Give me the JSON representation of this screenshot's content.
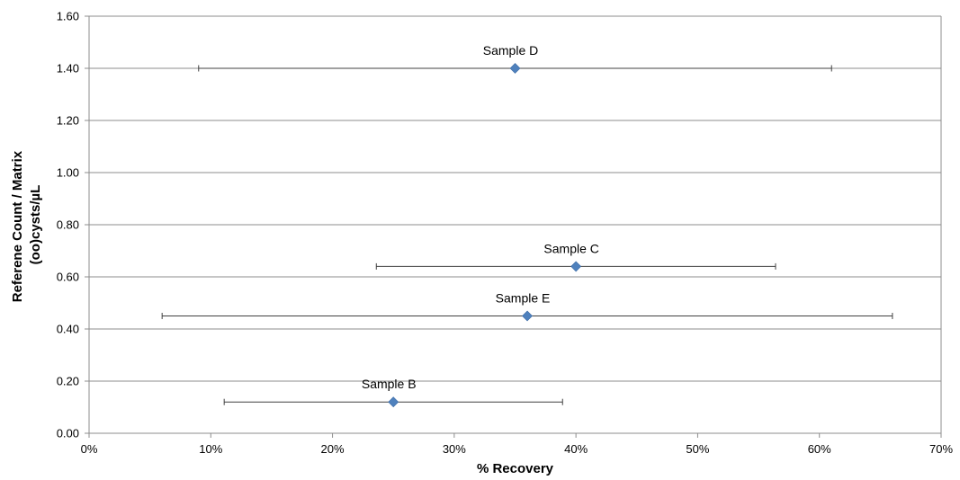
{
  "chart_data": {
    "type": "scatter",
    "title": "",
    "xlabel": "% Recovery",
    "ylabel_lines": [
      "Referene Count / Matrix",
      "(oo)cysts/µL"
    ],
    "xlim": [
      0,
      0.7
    ],
    "ylim": [
      0,
      1.6
    ],
    "x_ticks": [
      0,
      0.1,
      0.2,
      0.3,
      0.4,
      0.5,
      0.6,
      0.7
    ],
    "x_tick_labels": [
      "0%",
      "10%",
      "20%",
      "30%",
      "40%",
      "50%",
      "60%",
      "70%"
    ],
    "y_ticks": [
      0,
      0.2,
      0.4,
      0.6,
      0.8,
      1.0,
      1.2,
      1.4,
      1.6
    ],
    "y_tick_labels": [
      "0.00",
      "0.20",
      "0.40",
      "0.60",
      "0.80",
      "1.00",
      "1.20",
      "1.40",
      "1.60"
    ],
    "grid": true,
    "marker_color": "#4F81BD",
    "points": [
      {
        "label": "Sample D",
        "x": 0.35,
        "y": 1.4,
        "x_err_low": 0.09,
        "x_err_high": 0.61
      },
      {
        "label": "Sample C",
        "x": 0.4,
        "y": 0.64,
        "x_err_low": 0.236,
        "x_err_high": 0.564
      },
      {
        "label": "Sample E",
        "x": 0.36,
        "y": 0.45,
        "x_err_low": 0.06,
        "x_err_high": 0.66
      },
      {
        "label": "Sample B",
        "x": 0.25,
        "y": 0.12,
        "x_err_low": 0.111,
        "x_err_high": 0.389
      }
    ]
  }
}
